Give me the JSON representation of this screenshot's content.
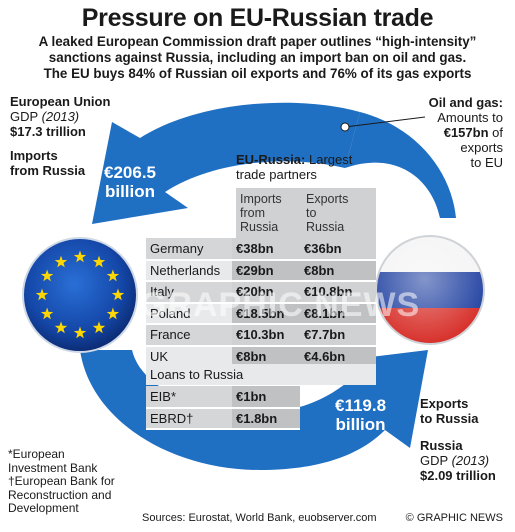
{
  "title": "Pressure on EU-Russian trade",
  "subtitle": [
    "A leaked European Commission draft paper outlines “high-intensity”",
    "sanctions against Russia, including an import ban on oil and gas.",
    "The EU buys 84% of Russian oil exports and 76% of its gas exports"
  ],
  "eu": {
    "name": "European Union",
    "gdp_label": "GDP",
    "gdp_year": "(2013)",
    "gdp_value": "$17.3 trillion"
  },
  "imports_label": [
    "Imports",
    "from Russia"
  ],
  "imports_value": [
    "€206.5",
    "billion"
  ],
  "oil_gas": {
    "heading": "Oil and gas:",
    "lines": [
      "Amounts to",
      "of",
      "exports",
      "to EU"
    ],
    "value": "€157bn"
  },
  "exports_label": [
    "Exports",
    "to Russia"
  ],
  "exports_value": [
    "€119.8",
    "billion"
  ],
  "russia": {
    "name": "Russia",
    "gdp_label": "GDP",
    "gdp_year": "(2013)",
    "gdp_value": "$2.09 trillion"
  },
  "table": {
    "title_bold": "EU-Russia:",
    "title_rest": "Largest",
    "title_line2": "trade partners",
    "col_imports": [
      "Imports",
      "from",
      "Russia"
    ],
    "col_exports": [
      "Exports",
      "to",
      "Russia"
    ],
    "rows": [
      {
        "country": "Germany",
        "imports": "€38bn",
        "exports": "€36bn"
      },
      {
        "country": "Netherlands",
        "imports": "€29bn",
        "exports": "€8bn"
      },
      {
        "country": "Italy",
        "imports": "€20bn",
        "exports": "€10.8bn"
      },
      {
        "country": "Poland",
        "imports": "€18.5bn",
        "exports": "€8.1bn"
      },
      {
        "country": "France",
        "imports": "€10.3bn",
        "exports": "€7.7bn"
      },
      {
        "country": "UK",
        "imports": "€8bn",
        "exports": "€4.6bn"
      }
    ]
  },
  "loans": {
    "heading": "Loans to Russia",
    "rows": [
      {
        "lender": "EIB*",
        "amount": "€1bn"
      },
      {
        "lender": "EBRD†",
        "amount": "€1.8bn"
      }
    ]
  },
  "footnotes": [
    "*European",
    "Investment Bank",
    "†European Bank for",
    "Reconstruction and",
    "Development"
  ],
  "sources": "Sources: Eurostat, World Bank, euobserver.com",
  "credit": "© GRAPHIC NEWS",
  "watermark": "GRAPHIC NEWS",
  "colors": {
    "arrow_blue": "#1f6fc2",
    "eu_blue": "#1447a8",
    "eu_star": "#ffd700",
    "ru_blue": "#1e3fa0",
    "ru_red": "#d62a24"
  },
  "icons": [
    "circular-arrow-icon",
    "eu-flag-icon",
    "russia-flag-icon"
  ]
}
